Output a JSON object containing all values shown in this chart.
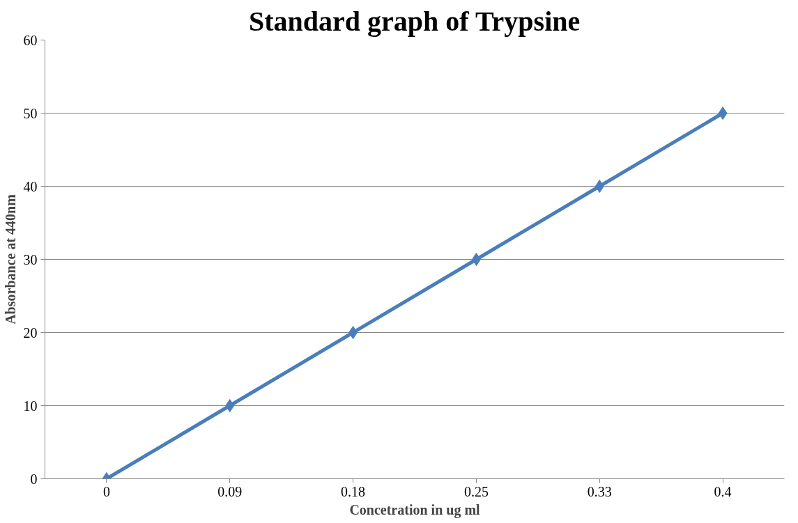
{
  "chart_data": {
    "type": "line",
    "title": "Standard graph of Trypsine",
    "xlabel": "Concetration in ug ml",
    "ylabel": "Absorbance at 440nm",
    "categories": [
      "0",
      "0.09",
      "0.18",
      "0.25",
      "0.33",
      "0.4"
    ],
    "series": [
      {
        "color": "#4a7ebb",
        "values": [
          0,
          10,
          20,
          30,
          40,
          50
        ]
      }
    ],
    "ylim": [
      0,
      60
    ],
    "yticks": [
      0,
      10,
      20,
      30,
      40,
      50,
      60
    ],
    "grid": "y",
    "marker": "diamond",
    "line_style": "solid"
  }
}
